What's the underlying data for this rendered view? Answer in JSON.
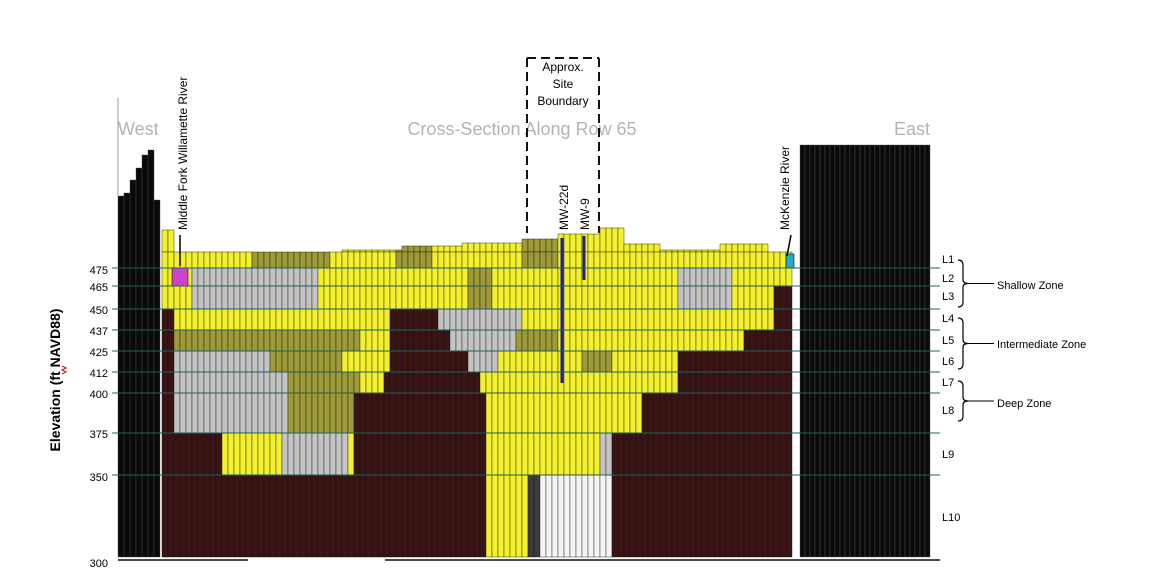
{
  "figure": {
    "title": "Cross-Section Along Row 65",
    "west_label": "West",
    "east_label": "East",
    "y_axis_label": "Elevation (ft NAVD88)",
    "y_ticks": [
      "475",
      "465",
      "450",
      "437",
      "425",
      "412",
      "400",
      "375",
      "350",
      "300"
    ],
    "layers": [
      "L1",
      "L2",
      "L3",
      "L4",
      "L5",
      "L6",
      "L7",
      "L8",
      "L9",
      "L10"
    ],
    "zones": [
      {
        "name": "Shallow Zone",
        "layers": [
          "L1",
          "L2",
          "L3"
        ]
      },
      {
        "name": "Intermediate Zone",
        "layers": [
          "L4",
          "L5",
          "L6"
        ]
      },
      {
        "name": "Deep Zone",
        "layers": [
          "L7",
          "L8"
        ]
      }
    ],
    "annotations": {
      "middle_fork_river": "Middle Fork Willamette River",
      "mckenzie_river": "McKenzie River",
      "site_boundary": [
        "Approx.",
        "Site",
        "Boundary"
      ],
      "well_1": "MW-22d",
      "well_2": "MW-9"
    },
    "colors": {
      "bedrock": "#3a1414",
      "high_k": "#f2f030",
      "mid_k": "#9e9a3a",
      "low_k": "#c4c4c4",
      "inactive": "#f4f4f4",
      "column_edge": "#111111",
      "boundary_column": "#0a0a0a",
      "grid": "#1e6060",
      "well": "#222288",
      "river_west": "#cc44cc",
      "river_east": "#2aa8c8",
      "header_text": "#b4b4b4"
    }
  }
}
